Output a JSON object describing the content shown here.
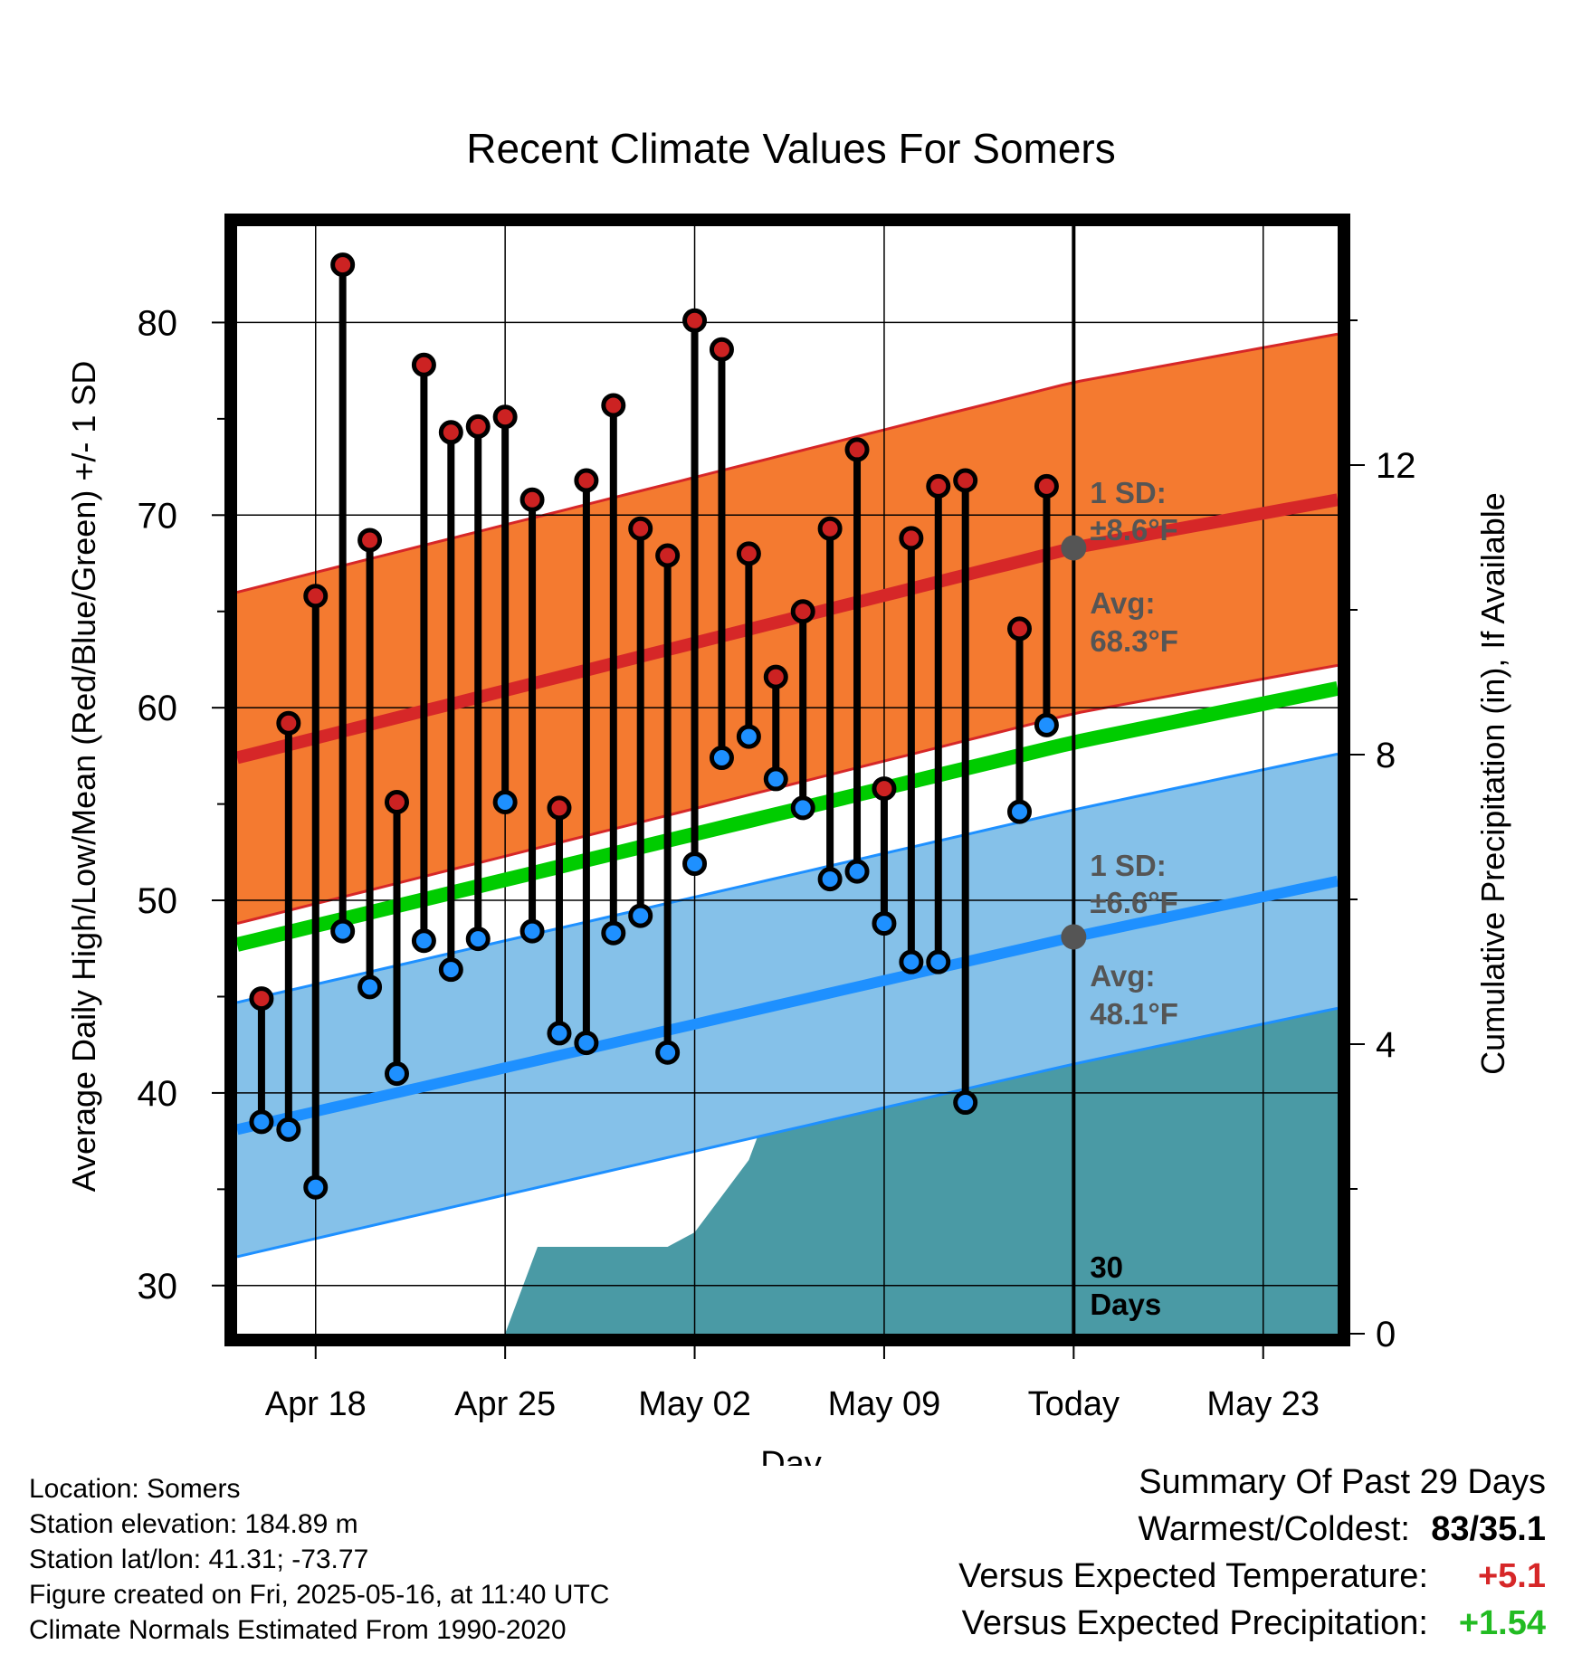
{
  "chart_data": {
    "type": "line",
    "title": "Recent Climate Values For Somers",
    "xlabel": "Day",
    "ylabel_left": "Average Daily High/Low/Mean (Red/Blue/Green) +/- 1 SD",
    "ylabel_right": "Cumulative Precipitation (in), If Available",
    "ylim": [
      27.5,
      85
    ],
    "precip_ylim": [
      0,
      15.3
    ],
    "xlim_day_of_april": [
      15.1,
      28.75
    ],
    "x_ticks": [
      {
        "day": 18,
        "label": "Apr 18"
      },
      {
        "day": 25,
        "label": "Apr 25"
      },
      {
        "day": 32,
        "label": "May 02"
      },
      {
        "day": 39,
        "label": "May 09"
      },
      {
        "day": 46,
        "label": "Today"
      },
      {
        "day": 53,
        "label": "May 23"
      }
    ],
    "y_ticks_left": [
      "30",
      "40",
      "50",
      "60",
      "70",
      "80"
    ],
    "y_ticks_right": [
      "0",
      "4",
      "8",
      "12"
    ],
    "x_range_days": [
      15.1,
      55.75
    ],
    "today_day": 46,
    "today_marker_label": "30\nDays",
    "daily": [
      {
        "day": 16,
        "high": 44.9,
        "low": 38.5
      },
      {
        "day": 17,
        "high": 59.2,
        "low": 38.1
      },
      {
        "day": 18,
        "high": 65.8,
        "low": 35.1
      },
      {
        "day": 19,
        "high": 83.0,
        "low": 48.4
      },
      {
        "day": 20,
        "high": 68.7,
        "low": 45.5
      },
      {
        "day": 21,
        "high": 55.1,
        "low": 41.0
      },
      {
        "day": 22,
        "high": 77.8,
        "low": 47.9
      },
      {
        "day": 23,
        "high": 74.3,
        "low": 46.4
      },
      {
        "day": 24,
        "high": 74.6,
        "low": 48.0
      },
      {
        "day": 25,
        "high": 75.1,
        "low": 55.1
      },
      {
        "day": 26,
        "high": 70.8,
        "low": 48.4
      },
      {
        "day": 27,
        "high": 54.8,
        "low": 43.1
      },
      {
        "day": 28,
        "high": 71.8,
        "low": 42.6
      },
      {
        "day": 29,
        "high": 75.7,
        "low": 48.3
      },
      {
        "day": 30,
        "high": 69.3,
        "low": 49.2
      },
      {
        "day": 31,
        "high": 67.9,
        "low": 42.1
      },
      {
        "day": 32,
        "high": 80.1,
        "low": 51.9
      },
      {
        "day": 33,
        "high": 78.6,
        "low": 57.4
      },
      {
        "day": 34,
        "high": 68.0,
        "low": 58.5
      },
      {
        "day": 35,
        "high": 61.6,
        "low": 56.3
      },
      {
        "day": 36,
        "high": 65.0,
        "low": 54.8
      },
      {
        "day": 37,
        "high": 69.3,
        "low": 51.1
      },
      {
        "day": 38,
        "high": 73.4,
        "low": 51.5
      },
      {
        "day": 39,
        "high": 55.8,
        "low": 48.8
      },
      {
        "day": 40,
        "high": 68.8,
        "low": 46.8
      },
      {
        "day": 41,
        "high": 71.5,
        "low": 46.8
      },
      {
        "day": 42,
        "high": 71.8,
        "low": 39.5
      },
      {
        "day": 44,
        "high": 64.1,
        "low": 54.6
      },
      {
        "day": 45,
        "high": 71.5,
        "low": 59.1
      }
    ],
    "normals": {
      "high_mean": [
        {
          "day": 15.1,
          "value": 57.4
        },
        {
          "day": 46,
          "value": 68.3
        },
        {
          "day": 55.75,
          "value": 70.8
        }
      ],
      "high_sd": 8.6,
      "low_mean": [
        {
          "day": 15.1,
          "value": 38.1
        },
        {
          "day": 46,
          "value": 48.1
        },
        {
          "day": 55.75,
          "value": 51.0
        }
      ],
      "low_sd": 6.6,
      "mean": [
        {
          "day": 15.1,
          "value": 47.7
        },
        {
          "day": 46,
          "value": 58.2
        },
        {
          "day": 55.75,
          "value": 61.0
        }
      ]
    },
    "precip_cumulative": [
      {
        "day": 15.1,
        "value": 0
      },
      {
        "day": 24.1,
        "value": 0
      },
      {
        "day": 25.0,
        "value": 0
      },
      {
        "day": 26.2,
        "value": 1.2
      },
      {
        "day": 27,
        "value": 1.2
      },
      {
        "day": 31,
        "value": 1.2
      },
      {
        "day": 32,
        "value": 1.4
      },
      {
        "day": 33,
        "value": 1.9
      },
      {
        "day": 34,
        "value": 2.4
      },
      {
        "day": 35,
        "value": 3.4
      },
      {
        "day": 36,
        "value": 3.5
      },
      {
        "day": 37,
        "value": 3.5
      },
      {
        "day": 38,
        "value": 3.9
      },
      {
        "day": 39,
        "value": 4.9
      },
      {
        "day": 42,
        "value": 4.9
      },
      {
        "day": 43,
        "value": 5.1
      },
      {
        "day": 44,
        "value": 5.4
      },
      {
        "day": 46,
        "value": 5.4
      },
      {
        "day": 55.75,
        "value": 5.4
      }
    ],
    "annotations": {
      "high_sd_label": "1 SD:",
      "high_sd_value": "±8.6°F",
      "high_avg_label": "Avg:",
      "high_avg_value": "68.3°F",
      "low_sd_label": "1 SD:",
      "low_sd_value": "±6.6°F",
      "low_avg_label": "Avg:",
      "low_avg_value": "48.1°F",
      "days_line1": "30",
      "days_line2": "Days"
    },
    "colors": {
      "high_band": "#f47a30",
      "high_line": "#d62728",
      "low_band": "#85c1e9",
      "low_line": "#1e90ff",
      "mean_line": "#00cc00",
      "precip": "#4a9aa5",
      "high_dot": "#cc2222",
      "low_dot": "#1e90ff",
      "avg_dot": "#555555"
    }
  },
  "footer": {
    "location": "Location: Somers",
    "elevation": "Station elevation: 184.89 m",
    "latlon": "Station lat/lon: 41.31; -73.77",
    "created": "Figure created on Fri, 2025-05-16, at 11:40 UTC",
    "normals": "Climate Normals Estimated From 1990-2020"
  },
  "summary": {
    "title": "Summary Of Past 29 Days",
    "warmest_label": "Warmest/Coldest:",
    "warmest_value": "83/35.1",
    "temp_label": "Versus Expected Temperature:",
    "temp_value": "+5.1",
    "temp_color": "#d62728",
    "precip_label": "Versus Expected Precipitation:",
    "precip_value": "+1.54",
    "precip_color": "#22bb22"
  }
}
